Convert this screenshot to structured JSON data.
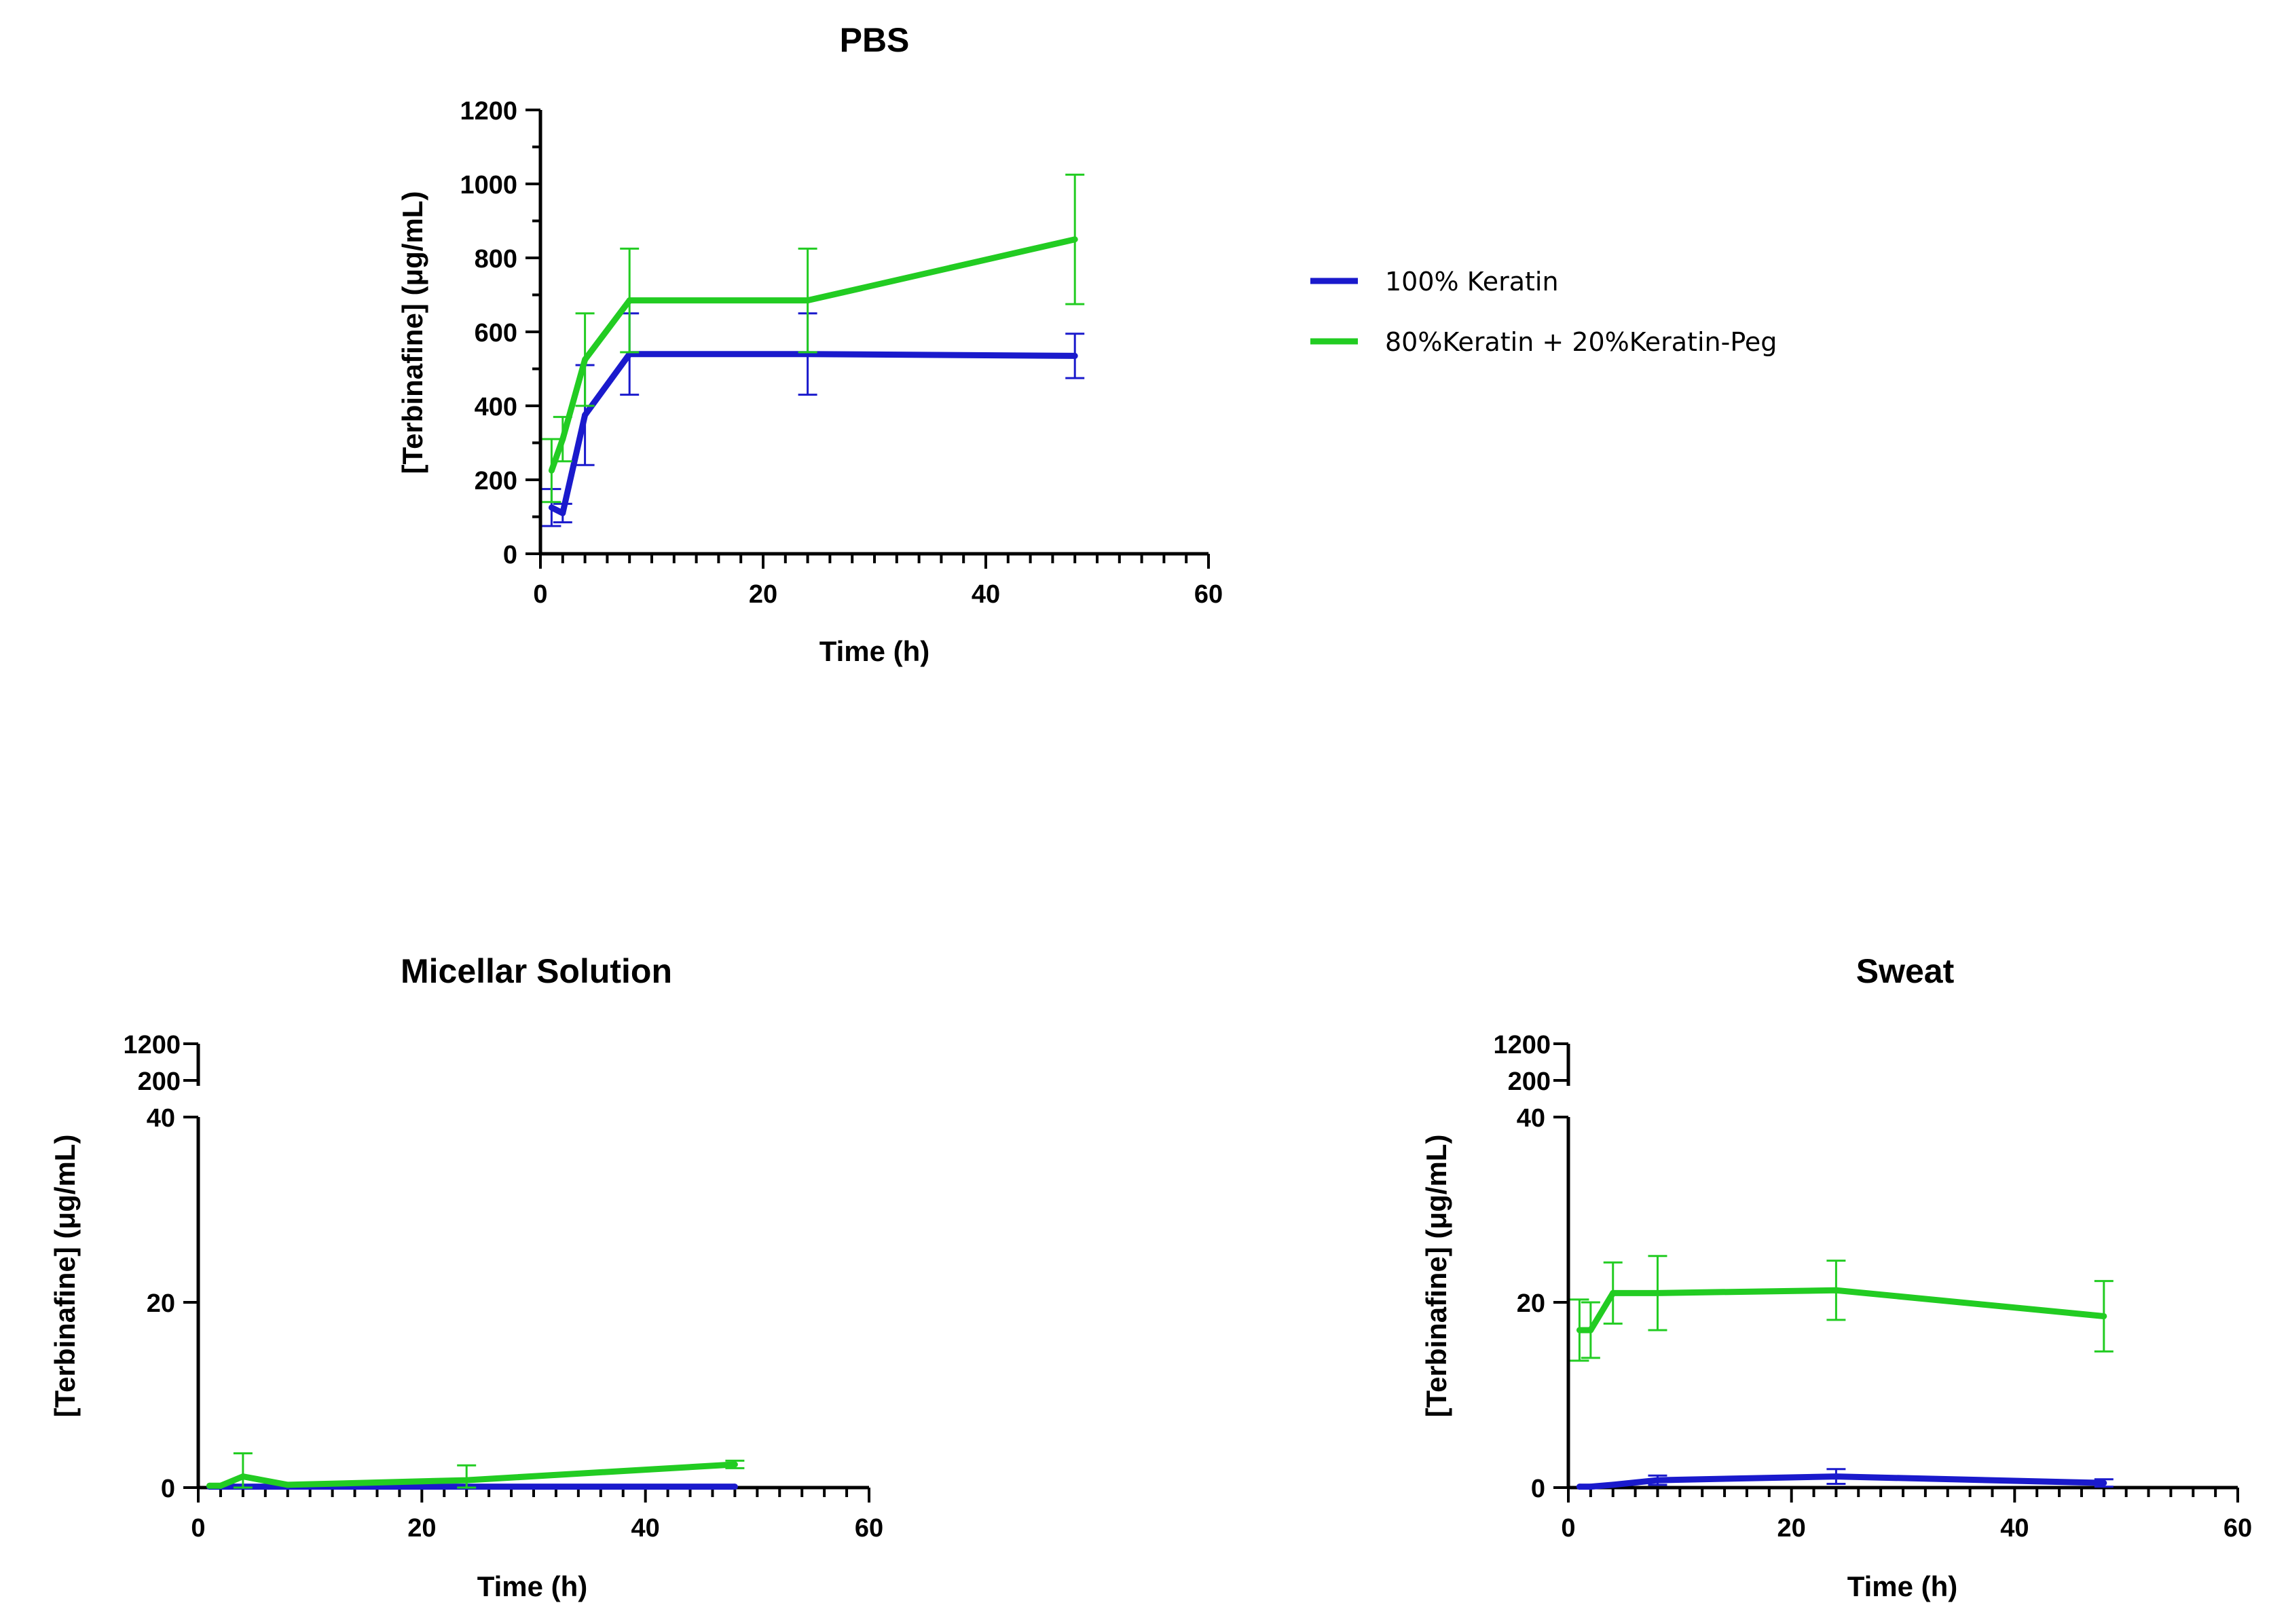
{
  "colors": {
    "keratin": "#1a1acc",
    "keratin_peg": "#22cc22",
    "axis": "#000000"
  },
  "legend": {
    "items": [
      {
        "label": "100% Keratin",
        "color": "#1a1acc"
      },
      {
        "label": "80%Keratin + 20%Keratin-Peg",
        "color": "#22cc22"
      }
    ]
  },
  "chart_data": [
    {
      "type": "line",
      "title": "PBS",
      "xlabel": "Time (h)",
      "ylabel": "[Terbinafine] (μg/mL)",
      "xlim": [
        0,
        60
      ],
      "ylim": [
        0,
        1200
      ],
      "xticks": [
        0,
        20,
        40,
        60
      ],
      "yticks": [
        0,
        200,
        400,
        600,
        800,
        1000,
        1200
      ],
      "series": [
        {
          "name": "100% Keratin",
          "color": "#1a1acc",
          "x": [
            1,
            2,
            4,
            8,
            24,
            48
          ],
          "y": [
            125,
            110,
            375,
            540,
            540,
            535
          ],
          "err": [
            50,
            25,
            135,
            110,
            110,
            60
          ]
        },
        {
          "name": "80%Keratin + 20%Keratin-Peg",
          "color": "#22cc22",
          "x": [
            1,
            2,
            4,
            8,
            24,
            48
          ],
          "y": [
            225,
            310,
            525,
            685,
            685,
            850
          ],
          "err": [
            85,
            60,
            125,
            140,
            140,
            175
          ]
        }
      ]
    },
    {
      "type": "line",
      "title": "Micellar Solution",
      "xlabel": "Time (h)",
      "ylabel": "[Terbinafine] (μg/mL)",
      "xlim": [
        0,
        60
      ],
      "ylim": [
        0,
        40
      ],
      "xticks": [
        0,
        20,
        40,
        60
      ],
      "yticks": [
        0,
        20,
        40
      ],
      "broken_axis_ticks": [
        200,
        1200
      ],
      "series": [
        {
          "name": "100% Keratin",
          "color": "#1a1acc",
          "x": [
            1,
            2,
            4,
            8,
            24,
            48
          ],
          "y": [
            0.1,
            0.1,
            0.1,
            0.1,
            0.1,
            0.1
          ],
          "err": [
            0,
            0,
            0,
            0,
            0,
            0
          ]
        },
        {
          "name": "80%Keratin + 20%Keratin-Peg",
          "color": "#22cc22",
          "x": [
            1,
            2,
            4,
            8,
            24,
            48
          ],
          "y": [
            0.2,
            0.2,
            1.2,
            0.3,
            0.8,
            2.5
          ],
          "err": [
            0,
            0,
            2.5,
            0,
            1.6,
            0.4
          ]
        }
      ]
    },
    {
      "type": "line",
      "title": "Sweat",
      "xlabel": "Time (h)",
      "ylabel": "[Terbinafine] (μg/mL)",
      "xlim": [
        0,
        60
      ],
      "ylim": [
        0,
        40
      ],
      "xticks": [
        0,
        20,
        40,
        60
      ],
      "yticks": [
        0,
        20,
        40
      ],
      "broken_axis_ticks": [
        200,
        1200
      ],
      "series": [
        {
          "name": "100% Keratin",
          "color": "#1a1acc",
          "x": [
            1,
            2,
            4,
            8,
            24,
            48
          ],
          "y": [
            0.1,
            0.1,
            0.3,
            0.8,
            1.2,
            0.5
          ],
          "err": [
            0,
            0,
            0,
            0.5,
            0.8,
            0.4
          ]
        },
        {
          "name": "80%Keratin + 20%Keratin-Peg",
          "color": "#22cc22",
          "x": [
            1,
            2,
            4,
            8,
            24,
            48
          ],
          "y": [
            17,
            17,
            21,
            21,
            21.3,
            18.5
          ],
          "err": [
            3.3,
            3,
            3.3,
            4,
            3.2,
            3.8
          ]
        }
      ]
    }
  ]
}
